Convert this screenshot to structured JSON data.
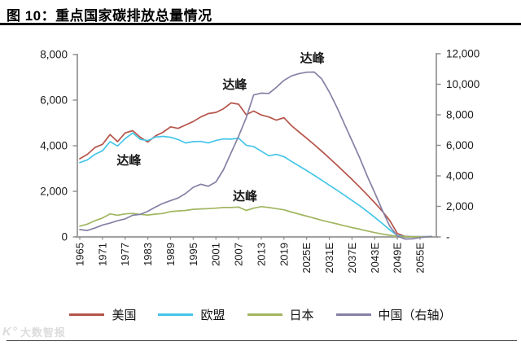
{
  "header": {
    "title": "图 10：重点国家碳排放总量情况"
  },
  "watermark": {
    "logo": "K°",
    "text": "大数智报"
  },
  "chart_data": {
    "type": "line",
    "title": "重点国家碳排放总量情况",
    "grid": false,
    "legend_position": "bottom",
    "left_axis": {
      "ylim": [
        0,
        8000
      ],
      "tick_values": [
        0,
        2000,
        4000,
        6000,
        8000
      ],
      "tick_labels": [
        "0",
        "2,000",
        "4,000",
        "6,000",
        "8,000"
      ]
    },
    "right_axis": {
      "ylim": [
        0,
        12000
      ],
      "tick_values": [
        0,
        2000,
        4000,
        6000,
        8000,
        10000,
        12000
      ],
      "tick_labels": [
        "-",
        "2,000",
        "4,000",
        "6,000",
        "8,000",
        "10,000",
        "12,000"
      ]
    },
    "x_axis": {
      "range": [
        1965,
        2058
      ],
      "tick_years": [
        1965,
        1971,
        1977,
        1983,
        1989,
        1995,
        2001,
        2007,
        2013,
        2019,
        2025,
        2031,
        2037,
        2043,
        2049,
        2055
      ],
      "tick_labels": [
        "1965",
        "1971",
        "1977",
        "1983",
        "1989",
        "1995",
        "2001",
        "2007",
        "2013",
        "2019",
        "2025E",
        "2031E",
        "2037E",
        "2043E",
        "2049E",
        "2055E"
      ]
    },
    "years": [
      1965,
      1967,
      1969,
      1971,
      1973,
      1975,
      1977,
      1979,
      1981,
      1983,
      1985,
      1987,
      1989,
      1991,
      1993,
      1995,
      1997,
      1999,
      2001,
      2003,
      2005,
      2007,
      2009,
      2011,
      2013,
      2015,
      2017,
      2019,
      2021,
      2023,
      2025,
      2027,
      2029,
      2031,
      2033,
      2035,
      2037,
      2039,
      2041,
      2043,
      2045,
      2047,
      2049,
      2051,
      2053,
      2055,
      2057,
      2058
    ],
    "series": [
      {
        "name": "美国",
        "slug": "usa",
        "axis": "left",
        "color": "#b5544a",
        "values": [
          3430,
          3620,
          3920,
          4060,
          4490,
          4180,
          4560,
          4660,
          4370,
          4160,
          4430,
          4590,
          4830,
          4760,
          4910,
          5060,
          5260,
          5410,
          5460,
          5620,
          5880,
          5820,
          5360,
          5520,
          5350,
          5260,
          5120,
          5230,
          4880,
          4600,
          4330,
          4050,
          3760,
          3460,
          3150,
          2840,
          2520,
          2190,
          1850,
          1500,
          1130,
          720,
          150,
          20,
          10,
          10,
          10,
          10
        ]
      },
      {
        "name": "欧盟",
        "slug": "eu",
        "axis": "left",
        "color": "#45c6e8",
        "values": [
          3260,
          3380,
          3620,
          3780,
          4180,
          3990,
          4310,
          4560,
          4280,
          4230,
          4380,
          4410,
          4370,
          4270,
          4120,
          4180,
          4190,
          4120,
          4230,
          4300,
          4290,
          4330,
          4020,
          3960,
          3760,
          3560,
          3620,
          3520,
          3310,
          3110,
          2910,
          2700,
          2490,
          2270,
          2050,
          1830,
          1600,
          1370,
          1120,
          860,
          590,
          310,
          60,
          10,
          10,
          10,
          10,
          10
        ]
      },
      {
        "name": "日本",
        "slug": "japan",
        "axis": "left",
        "color": "#a2b661",
        "values": [
          470,
          560,
          710,
          830,
          1010,
          950,
          1010,
          1030,
          990,
          960,
          1000,
          1030,
          1110,
          1140,
          1160,
          1210,
          1230,
          1240,
          1260,
          1290,
          1290,
          1310,
          1160,
          1260,
          1330,
          1290,
          1240,
          1190,
          1090,
          1000,
          910,
          820,
          730,
          650,
          570,
          490,
          410,
          340,
          260,
          190,
          130,
          70,
          20,
          5,
          5,
          5,
          5,
          5
        ]
      },
      {
        "name": "中国（右轴）",
        "slug": "china",
        "axis": "right",
        "color": "#8581a5",
        "values": [
          480,
          420,
          580,
          780,
          900,
          1060,
          1180,
          1420,
          1480,
          1680,
          1950,
          2200,
          2380,
          2550,
          2850,
          3250,
          3450,
          3320,
          3600,
          4400,
          5500,
          6600,
          7800,
          9300,
          9420,
          9400,
          9800,
          10250,
          10550,
          10700,
          10790,
          10800,
          10350,
          9500,
          8500,
          7400,
          6300,
          5200,
          4000,
          2900,
          1750,
          700,
          60,
          -140,
          -130,
          -40,
          10,
          30
        ]
      }
    ],
    "annotations": [
      {
        "text": "达峰",
        "target": "欧盟",
        "year": 1978,
        "value": 3360,
        "axis": "left"
      },
      {
        "text": "达峰",
        "target": "美国",
        "year": 2006,
        "value": 6680,
        "axis": "left"
      },
      {
        "text": "达峰",
        "target": "日本",
        "year": 2008.7,
        "value": 1790,
        "axis": "left"
      },
      {
        "text": "达峰",
        "target": "中国",
        "year": 2026.5,
        "value": 11700,
        "axis": "right"
      }
    ]
  }
}
